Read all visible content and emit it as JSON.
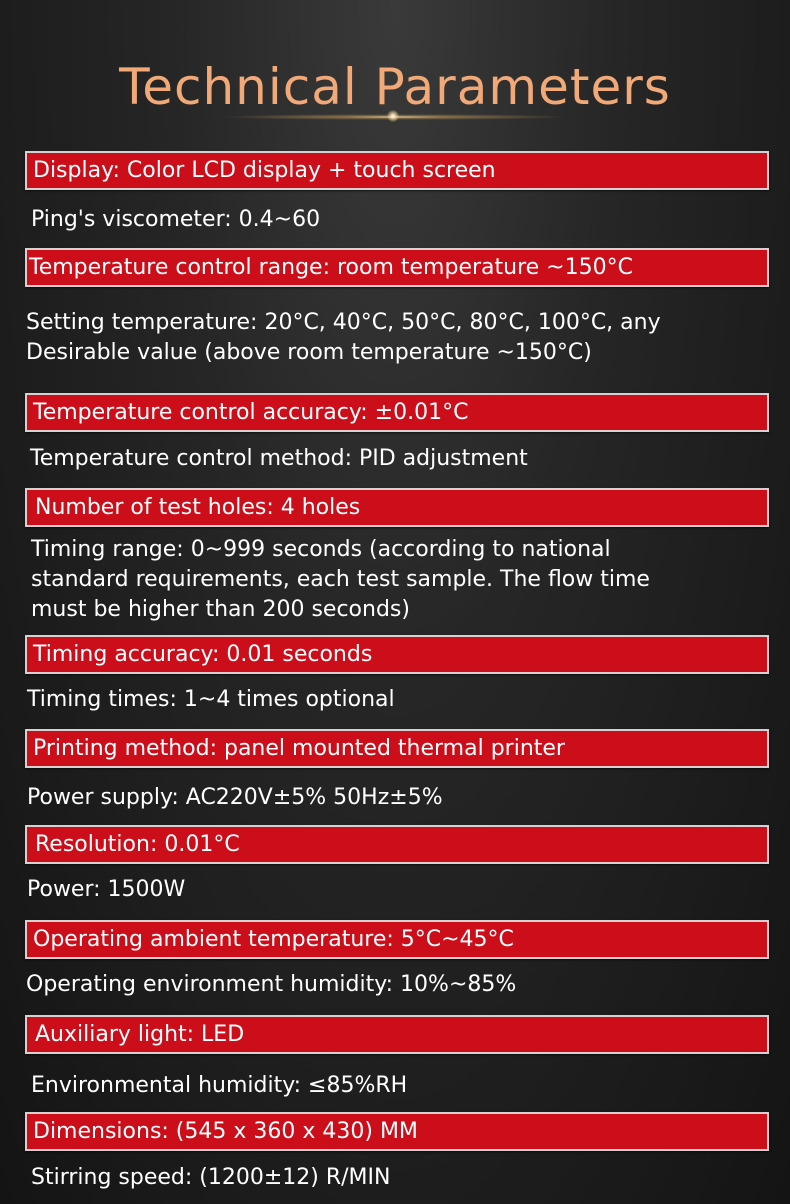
{
  "title": "Technical Parameters",
  "colors": {
    "title": "#f2a978",
    "bar": "#cc0e1a",
    "background": "#1e1e1e"
  },
  "rows": [
    {
      "header": "Display: Color LCD display + touch screen",
      "lines": [
        "Ping's viscometer: 0.4~60"
      ]
    },
    {
      "header": "Temperature control range: room temperature ~150°C",
      "lines": [
        "Setting temperature: 20°C, 40°C, 50°C, 80°C, 100°C, any",
        "Desirable value (above room temperature ~150°C)"
      ]
    },
    {
      "header": "Temperature control accuracy: ±0.01°C",
      "lines": [
        "Temperature control method: PID adjustment"
      ]
    },
    {
      "header": "Number of test holes: 4 holes",
      "lines": [
        "Timing range: 0~999 seconds (according to national",
        "standard requirements, each test sample. The flow time",
        "must be higher than 200 seconds)"
      ]
    },
    {
      "header": "Timing accuracy: 0.01 seconds",
      "lines": [
        "Timing times: 1~4 times optional"
      ]
    },
    {
      "header": "Printing method: panel mounted thermal printer",
      "lines": [
        "Power supply: AC220V±5% 50Hz±5%"
      ]
    },
    {
      "header": "Resolution: 0.01°C",
      "lines": [
        "Power: 1500W"
      ]
    },
    {
      "header": "Operating ambient temperature: 5°C~45°C",
      "lines": [
        "Operating environment humidity: 10%~85%"
      ]
    },
    {
      "header": "Auxiliary light: LED",
      "lines": [
        "Environmental humidity: ≤85%RH"
      ]
    },
    {
      "header": "Dimensions: (545 x 360 x 430) MM",
      "lines": [
        "Stirring speed: (1200±12) R/MIN"
      ]
    }
  ]
}
